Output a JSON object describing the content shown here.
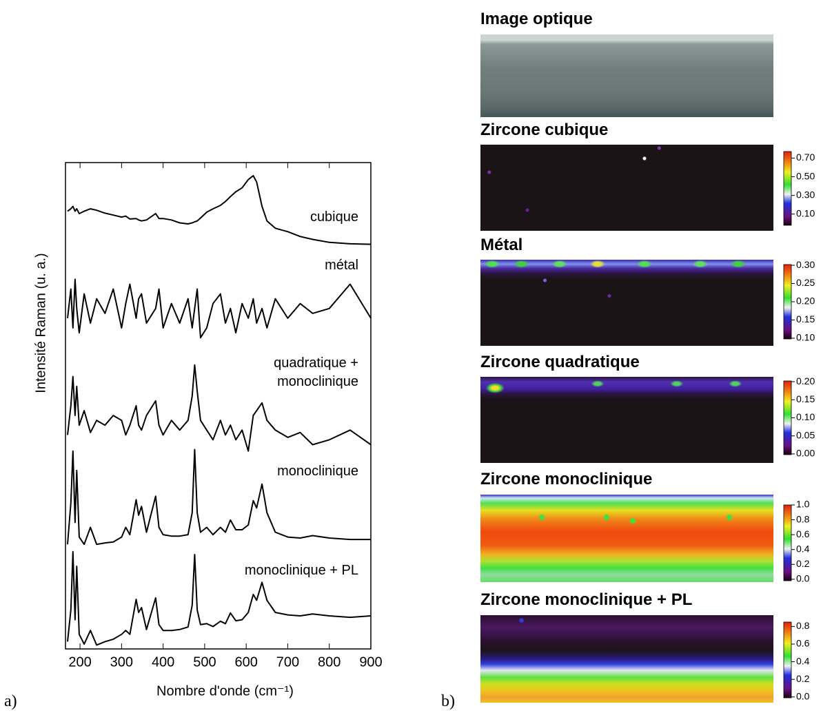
{
  "chart_data": [
    {
      "type": "line",
      "ylabel": "Intensité Raman (u. a.)",
      "xlabel": "Nombre d'onde (cm⁻¹)",
      "panel": "a)",
      "xlim": [
        165,
        900
      ],
      "xticks": [
        200,
        300,
        400,
        500,
        600,
        700,
        800,
        900
      ],
      "ylim": [
        0,
        100
      ],
      "x": [
        170,
        178,
        183,
        188,
        192,
        198,
        210,
        225,
        240,
        260,
        280,
        300,
        310,
        320,
        335,
        341,
        348,
        360,
        382,
        390,
        400,
        420,
        440,
        460,
        470,
        476,
        482,
        490,
        505,
        520,
        538,
        550,
        562,
        575,
        590,
        605,
        617,
        625,
        638,
        650,
        670,
        700,
        730,
        760,
        800,
        850,
        900
      ],
      "series": [
        {
          "name": "cubique",
          "color": "#000000",
          "values": [
            90,
            90.5,
            91,
            90,
            90.5,
            89.5,
            90,
            90.5,
            90.2,
            89.6,
            89.2,
            88.8,
            89,
            88.4,
            88.5,
            88.2,
            88,
            88.2,
            89.5,
            88.5,
            88.5,
            88.2,
            87.6,
            87.4,
            87.6,
            87.8,
            88,
            88.6,
            89.8,
            90.5,
            91.2,
            92,
            93,
            94,
            94.8,
            96.5,
            97.3,
            96,
            91,
            88,
            86.5,
            85.8,
            84.8,
            84.2,
            83.6,
            83.3,
            83.2
          ]
        },
        {
          "name": "métal",
          "color": "#000000",
          "values": [
            68,
            74,
            66,
            76,
            70,
            65,
            73,
            67,
            72,
            69,
            74,
            66,
            71,
            75,
            68,
            72,
            73,
            67,
            70,
            74,
            66,
            71,
            67,
            72,
            66,
            70,
            74,
            64,
            66,
            71,
            73,
            67,
            70,
            65,
            71,
            68,
            72,
            67,
            70,
            66,
            72,
            68,
            71,
            69,
            70,
            75,
            68
          ]
        },
        {
          "name": "quadratique + monoclinique",
          "color": "#000000",
          "values": [
            44,
            50,
            56,
            48,
            54,
            46,
            49,
            44.5,
            47,
            46,
            48,
            47,
            44,
            46,
            50,
            46,
            45,
            48,
            51,
            46,
            44,
            47,
            45,
            47,
            52,
            58.4,
            53,
            47,
            45,
            43,
            47,
            44,
            46,
            43,
            45,
            40.7,
            48,
            49,
            50.6,
            47,
            45,
            43.5,
            44.5,
            42,
            43,
            45,
            42
          ]
        },
        {
          "name": "monoclinique",
          "color": "#000000",
          "values": [
            21.5,
            30,
            40.7,
            26,
            36.7,
            23,
            21.5,
            25,
            21.5,
            21.8,
            22,
            23,
            25,
            23.5,
            30.7,
            27.5,
            29.3,
            24,
            31.4,
            25,
            23.5,
            23.2,
            23.2,
            23.5,
            28,
            41,
            28,
            24,
            25,
            23.5,
            25,
            24,
            26.5,
            24.5,
            24.5,
            25.5,
            30.5,
            29,
            33.9,
            28,
            24,
            23,
            22.8,
            23.3,
            22.8,
            22.5,
            22.5
          ]
        },
        {
          "name": "monoclinique + PL",
          "color": "#000000",
          "values": [
            1.5,
            8,
            20,
            6,
            17,
            3,
            1,
            3.8,
            0.8,
            1.5,
            2,
            3,
            3.8,
            3,
            10.2,
            7.5,
            8.5,
            4,
            10.5,
            5,
            3.8,
            3.8,
            4,
            4.5,
            9,
            19.4,
            8,
            5,
            5.2,
            4.6,
            5.7,
            5.2,
            7.4,
            5.8,
            6,
            7.5,
            11.2,
            10,
            13.7,
            10,
            7.5,
            7,
            6.8,
            7.2,
            6.8,
            6.5,
            6.8
          ]
        }
      ]
    },
    {
      "type": "image",
      "title": "Image optique",
      "panel": "b)"
    },
    {
      "type": "heatmap",
      "title": "Zircone cubique",
      "clim": [
        -0.02,
        0.77
      ],
      "cticks": [
        {
          "value": 0.7,
          "label": "0.70"
        },
        {
          "value": 0.5,
          "label": "0.50"
        },
        {
          "value": 0.3,
          "label": "0.30"
        },
        {
          "value": 0.1,
          "label": "0.10"
        }
      ]
    },
    {
      "type": "heatmap",
      "title": "Métal",
      "clim": [
        0.098,
        0.302
      ],
      "cticks": [
        {
          "value": 0.3,
          "label": "0.30"
        },
        0.25,
        {
          "value": 0.2,
          "label": "0.20"
        },
        0.15,
        {
          "value": 0.1,
          "label": "0.10"
        }
      ]
    },
    {
      "type": "heatmap",
      "title": "Zircone quadratique",
      "clim": [
        -0.002,
        0.202
      ],
      "cticks": [
        {
          "value": 0.2,
          "label": "0.20"
        },
        0.15,
        {
          "value": 0.1,
          "label": "0.10"
        },
        0.05,
        {
          "value": 0,
          "label": "0.00"
        }
      ]
    },
    {
      "type": "heatmap",
      "title": "Zircone monoclinique",
      "clim": [
        -0.02,
        1.0
      ],
      "cticks": [
        {
          "value": 1,
          "label": "1.0"
        },
        0.8,
        0.6,
        0.4,
        0.2,
        {
          "value": 0,
          "label": "0.0"
        }
      ]
    },
    {
      "type": "heatmap",
      "title": "Zircone monoclinique + PL",
      "clim": [
        -0.01,
        0.85
      ],
      "cticks": [
        0.8,
        0.6,
        0.4,
        0.2,
        {
          "value": 0,
          "label": "0.0"
        }
      ]
    }
  ]
}
